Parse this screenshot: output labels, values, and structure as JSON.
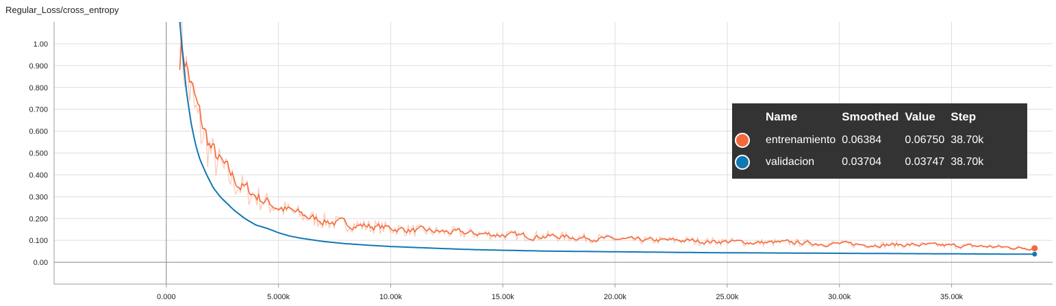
{
  "card": {
    "title": "Regular_Loss/cross_entropy"
  },
  "tooltip": {
    "headers": {
      "name": "Name",
      "smoothed": "Smoothed",
      "value": "Value",
      "step": "Step"
    },
    "rows": [
      {
        "name": "entrenamiento",
        "smoothed": "0.06384",
        "value": "0.06750",
        "step": "38.70k",
        "color": "#f4693b"
      },
      {
        "name": "validacion",
        "smoothed": "0.03704",
        "value": "0.03747",
        "step": "38.70k",
        "color": "#0f77b4"
      }
    ]
  },
  "chart_data": {
    "type": "line",
    "title": "Regular_Loss/cross_entropy",
    "xlim": [
      -5000,
      39500
    ],
    "ylim": [
      -0.1,
      1.1
    ],
    "x_ticks": [
      "0.000",
      "5.000k",
      "10.00k",
      "15.00k",
      "20.00k",
      "25.00k",
      "30.00k",
      "35.00k"
    ],
    "x_tick_values": [
      0,
      5000,
      10000,
      15000,
      20000,
      25000,
      30000,
      35000
    ],
    "y_ticks": [
      "0.00",
      "0.100",
      "0.200",
      "0.300",
      "0.400",
      "0.500",
      "0.600",
      "0.700",
      "0.800",
      "0.900",
      "1.00"
    ],
    "y_tick_values": [
      0,
      0.1,
      0.2,
      0.3,
      0.4,
      0.5,
      0.6,
      0.7,
      0.8,
      0.9,
      1.0
    ],
    "grid": true,
    "series": [
      {
        "name": "entrenamiento",
        "color": "#f4693b",
        "raw_color": "#fbc6b1",
        "x": [
          600,
          750,
          900,
          1100,
          1300,
          1500,
          1800,
          2100,
          2400,
          2700,
          3000,
          3500,
          4000,
          4500,
          5000,
          5500,
          6000,
          6500,
          7000,
          7500,
          8000,
          8500,
          9000,
          10000,
          11000,
          12000,
          13000,
          14000,
          15000,
          16000,
          17000,
          18000,
          19000,
          20000,
          21000,
          22000,
          23000,
          24000,
          25000,
          26000,
          27000,
          28000,
          29000,
          30000,
          31000,
          32000,
          33000,
          34000,
          35000,
          36000,
          37000,
          38000,
          38700
        ],
        "y": [
          1.1,
          0.95,
          0.86,
          0.76,
          0.68,
          0.62,
          0.54,
          0.48,
          0.44,
          0.4,
          0.37,
          0.33,
          0.3,
          0.27,
          0.25,
          0.23,
          0.215,
          0.2,
          0.19,
          0.18,
          0.175,
          0.17,
          0.165,
          0.155,
          0.145,
          0.14,
          0.135,
          0.13,
          0.125,
          0.12,
          0.12,
          0.115,
          0.11,
          0.105,
          0.1,
          0.1,
          0.1,
          0.095,
          0.095,
          0.09,
          0.09,
          0.09,
          0.085,
          0.085,
          0.08,
          0.08,
          0.08,
          0.078,
          0.076,
          0.074,
          0.07,
          0.065,
          0.064
        ]
      },
      {
        "name": "validacion",
        "color": "#0f77b4",
        "raw_color": "#b7d7ea",
        "x": [
          600,
          750,
          900,
          1100,
          1300,
          1500,
          1800,
          2100,
          2400,
          2700,
          3000,
          3500,
          4000,
          4500,
          5000,
          5500,
          6000,
          7000,
          8000,
          9000,
          10000,
          11000,
          12000,
          13000,
          14000,
          15000,
          16000,
          17000,
          18000,
          19000,
          20000,
          22000,
          24000,
          26000,
          28000,
          30000,
          32000,
          34000,
          36000,
          38000,
          38700
        ],
        "y": [
          1.1,
          0.93,
          0.78,
          0.64,
          0.54,
          0.47,
          0.4,
          0.34,
          0.3,
          0.27,
          0.24,
          0.2,
          0.17,
          0.155,
          0.135,
          0.12,
          0.11,
          0.095,
          0.085,
          0.078,
          0.072,
          0.068,
          0.064,
          0.06,
          0.057,
          0.055,
          0.053,
          0.051,
          0.05,
          0.049,
          0.048,
          0.046,
          0.044,
          0.043,
          0.042,
          0.041,
          0.04,
          0.039,
          0.038,
          0.037,
          0.037
        ]
      }
    ]
  }
}
